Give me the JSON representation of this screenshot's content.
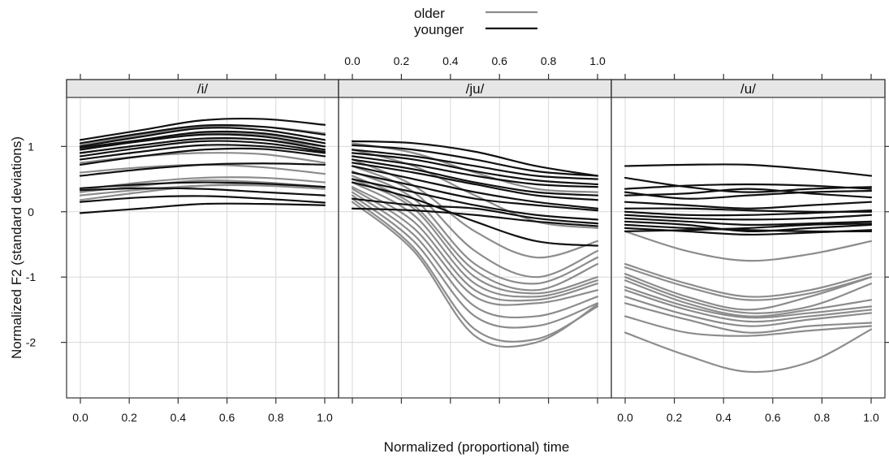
{
  "chart_data": {
    "type": "line",
    "layout": "three panels in a row with shared y-axis",
    "xlabel": "Normalized (proportional) time",
    "ylabel": "Normalized F2 (standard deviations)",
    "xlim": [
      0,
      1
    ],
    "ylim": [
      -2.85,
      1.75
    ],
    "x_ticks": [
      0.0,
      0.2,
      0.4,
      0.6,
      0.8,
      1.0
    ],
    "x_tick_labels": [
      "0.0",
      "0.2",
      "0.4",
      "0.6",
      "0.8",
      "1.0"
    ],
    "y_ticks": [
      -2,
      -1,
      0,
      1
    ],
    "y_tick_labels": [
      "-2",
      "-1",
      "0",
      "1"
    ],
    "grid": true,
    "legend": {
      "placement": "top-center",
      "entries": [
        {
          "label": "older",
          "color": "#8c8c8c"
        },
        {
          "label": "younger",
          "color": "#111111"
        }
      ]
    },
    "x_sample_points": [
      0,
      0.25,
      0.5,
      0.75,
      1
    ],
    "panels": [
      {
        "label": "/i/",
        "series": [
          {
            "group": "younger",
            "y": [
              1.1,
              1.25,
              1.4,
              1.42,
              1.33
            ]
          },
          {
            "group": "younger",
            "y": [
              1.05,
              1.2,
              1.32,
              1.3,
              1.18
            ]
          },
          {
            "group": "younger",
            "y": [
              1.0,
              1.15,
              1.28,
              1.25,
              1.1
            ]
          },
          {
            "group": "younger",
            "y": [
              0.98,
              1.1,
              1.22,
              1.2,
              1.05
            ]
          },
          {
            "group": "younger",
            "y": [
              0.95,
              1.08,
              1.18,
              1.15,
              1.0
            ]
          },
          {
            "group": "younger",
            "y": [
              0.9,
              1.02,
              1.12,
              1.1,
              0.95
            ]
          },
          {
            "group": "younger",
            "y": [
              0.85,
              0.98,
              1.08,
              1.05,
              0.92
            ]
          },
          {
            "group": "younger",
            "y": [
              0.8,
              0.92,
              1.02,
              1.0,
              0.9
            ]
          },
          {
            "group": "younger",
            "y": [
              0.72,
              0.85,
              0.95,
              0.96,
              0.85
            ]
          },
          {
            "group": "younger",
            "y": [
              0.55,
              0.65,
              0.72,
              0.74,
              0.72
            ]
          },
          {
            "group": "younger",
            "y": [
              0.36,
              0.42,
              0.45,
              0.43,
              0.38
            ]
          },
          {
            "group": "younger",
            "y": [
              0.33,
              0.36,
              0.35,
              0.3,
              0.25
            ]
          },
          {
            "group": "younger",
            "y": [
              0.15,
              0.22,
              0.24,
              0.2,
              0.14
            ]
          },
          {
            "group": "younger",
            "y": [
              -0.02,
              0.05,
              0.12,
              0.12,
              0.1
            ]
          },
          {
            "group": "older",
            "y": [
              1.02,
              1.18,
              1.3,
              1.3,
              1.2
            ]
          },
          {
            "group": "older",
            "y": [
              0.95,
              1.1,
              1.2,
              1.18,
              1.05
            ]
          },
          {
            "group": "older",
            "y": [
              0.9,
              1.02,
              1.12,
              1.1,
              1.0
            ]
          },
          {
            "group": "older",
            "y": [
              0.75,
              0.85,
              0.9,
              0.88,
              0.75
            ]
          },
          {
            "group": "older",
            "y": [
              0.6,
              0.68,
              0.72,
              0.68,
              0.58
            ]
          },
          {
            "group": "older",
            "y": [
              0.34,
              0.45,
              0.52,
              0.52,
              0.45
            ]
          },
          {
            "group": "older",
            "y": [
              0.3,
              0.4,
              0.48,
              0.45,
              0.38
            ]
          },
          {
            "group": "older",
            "y": [
              0.25,
              0.34,
              0.4,
              0.4,
              0.35
            ]
          },
          {
            "group": "older",
            "y": [
              0.18,
              0.3,
              0.4,
              0.42,
              0.38
            ]
          }
        ]
      },
      {
        "label": "/ju/",
        "series": [
          {
            "group": "younger",
            "y": [
              1.08,
              1.05,
              0.92,
              0.7,
              0.55
            ]
          },
          {
            "group": "younger",
            "y": [
              1.02,
              0.95,
              0.8,
              0.62,
              0.55
            ]
          },
          {
            "group": "younger",
            "y": [
              0.95,
              0.85,
              0.7,
              0.55,
              0.5
            ]
          },
          {
            "group": "younger",
            "y": [
              0.9,
              0.8,
              0.62,
              0.48,
              0.42
            ]
          },
          {
            "group": "younger",
            "y": [
              0.85,
              0.72,
              0.55,
              0.42,
              0.38
            ]
          },
          {
            "group": "younger",
            "y": [
              0.8,
              0.65,
              0.45,
              0.3,
              0.25
            ]
          },
          {
            "group": "younger",
            "y": [
              0.75,
              0.6,
              0.42,
              0.25,
              0.18
            ]
          },
          {
            "group": "younger",
            "y": [
              0.7,
              0.5,
              0.3,
              0.15,
              0.05
            ]
          },
          {
            "group": "younger",
            "y": [
              0.6,
              0.4,
              0.2,
              0.1,
              0.02
            ]
          },
          {
            "group": "younger",
            "y": [
              0.5,
              0.3,
              0.1,
              -0.05,
              -0.12
            ]
          },
          {
            "group": "younger",
            "y": [
              0.45,
              0.2,
              -0.15,
              -0.45,
              -0.52
            ]
          },
          {
            "group": "younger",
            "y": [
              0.2,
              0.1,
              0.05,
              -0.1,
              -0.18
            ]
          },
          {
            "group": "younger",
            "y": [
              0.05,
              0.02,
              -0.05,
              -0.15,
              -0.22
            ]
          },
          {
            "group": "older",
            "y": [
              1.05,
              0.9,
              0.6,
              0.35,
              0.3
            ]
          },
          {
            "group": "older",
            "y": [
              0.95,
              0.7,
              0.25,
              -0.15,
              -0.25
            ]
          },
          {
            "group": "older",
            "y": [
              0.8,
              0.4,
              -0.3,
              -0.7,
              -0.45
            ]
          },
          {
            "group": "older",
            "y": [
              0.7,
              0.3,
              -0.6,
              -1.0,
              -0.6
            ]
          },
          {
            "group": "older",
            "y": [
              0.62,
              0.2,
              -0.8,
              -1.1,
              -0.7
            ]
          },
          {
            "group": "older",
            "y": [
              0.55,
              0.1,
              -0.9,
              -1.2,
              -0.8
            ]
          },
          {
            "group": "older",
            "y": [
              0.5,
              0.05,
              -1.0,
              -1.25,
              -1.0
            ]
          },
          {
            "group": "older",
            "y": [
              0.45,
              -0.05,
              -1.1,
              -1.3,
              -1.05
            ]
          },
          {
            "group": "older",
            "y": [
              0.38,
              -0.15,
              -1.2,
              -1.35,
              -1.1
            ]
          },
          {
            "group": "older",
            "y": [
              0.35,
              -0.25,
              -1.3,
              -1.4,
              -1.2
            ]
          },
          {
            "group": "older",
            "y": [
              0.3,
              -0.35,
              -1.45,
              -1.6,
              -1.3
            ]
          },
          {
            "group": "older",
            "y": [
              0.25,
              -0.45,
              -1.6,
              -1.75,
              -1.4
            ]
          },
          {
            "group": "older",
            "y": [
              0.2,
              -0.55,
              -1.8,
              -1.95,
              -1.45
            ]
          },
          {
            "group": "older",
            "y": [
              0.15,
              -0.6,
              -1.9,
              -2.0,
              -1.42
            ]
          }
        ]
      },
      {
        "label": "/u/",
        "series": [
          {
            "group": "younger",
            "y": [
              0.7,
              0.72,
              0.72,
              0.65,
              0.55
            ]
          },
          {
            "group": "younger",
            "y": [
              0.52,
              0.38,
              0.3,
              0.35,
              0.38
            ]
          },
          {
            "group": "younger",
            "y": [
              0.35,
              0.4,
              0.42,
              0.4,
              0.35
            ]
          },
          {
            "group": "younger",
            "y": [
              0.3,
              0.2,
              0.25,
              0.3,
              0.32
            ]
          },
          {
            "group": "younger",
            "y": [
              0.25,
              0.28,
              0.35,
              0.28,
              0.22
            ]
          },
          {
            "group": "younger",
            "y": [
              0.15,
              0.1,
              0.05,
              0.1,
              0.15
            ]
          },
          {
            "group": "younger",
            "y": [
              0.05,
              0.05,
              0.02,
              0.0,
              0.0
            ]
          },
          {
            "group": "younger",
            "y": [
              0.0,
              -0.05,
              -0.05,
              -0.02,
              0.02
            ]
          },
          {
            "group": "younger",
            "y": [
              -0.05,
              -0.1,
              -0.12,
              -0.1,
              -0.05
            ]
          },
          {
            "group": "younger",
            "y": [
              -0.1,
              -0.15,
              -0.2,
              -0.18,
              -0.15
            ]
          },
          {
            "group": "younger",
            "y": [
              -0.15,
              -0.2,
              -0.3,
              -0.25,
              -0.2
            ]
          },
          {
            "group": "younger",
            "y": [
              -0.2,
              -0.25,
              -0.28,
              -0.3,
              -0.3
            ]
          },
          {
            "group": "younger",
            "y": [
              -0.25,
              -0.3,
              -0.35,
              -0.32,
              -0.28
            ]
          },
          {
            "group": "younger",
            "y": [
              -0.3,
              -0.28,
              -0.25,
              -0.2,
              -0.18
            ]
          },
          {
            "group": "older",
            "y": [
              -0.3,
              -0.6,
              -0.75,
              -0.65,
              -0.45
            ]
          },
          {
            "group": "older",
            "y": [
              -0.8,
              -1.1,
              -1.3,
              -1.2,
              -0.95
            ]
          },
          {
            "group": "older",
            "y": [
              -0.85,
              -1.15,
              -1.35,
              -1.25,
              -1.0
            ]
          },
          {
            "group": "older",
            "y": [
              -0.95,
              -1.3,
              -1.5,
              -1.3,
              -1.0
            ]
          },
          {
            "group": "older",
            "y": [
              -1.0,
              -1.35,
              -1.55,
              -1.45,
              -1.1
            ]
          },
          {
            "group": "older",
            "y": [
              -1.05,
              -1.4,
              -1.6,
              -1.5,
              -1.35
            ]
          },
          {
            "group": "older",
            "y": [
              -1.15,
              -1.45,
              -1.62,
              -1.55,
              -1.45
            ]
          },
          {
            "group": "older",
            "y": [
              -1.2,
              -1.5,
              -1.68,
              -1.6,
              -1.5
            ]
          },
          {
            "group": "older",
            "y": [
              -1.3,
              -1.58,
              -1.75,
              -1.65,
              -1.55
            ]
          },
          {
            "group": "older",
            "y": [
              -1.4,
              -1.65,
              -1.85,
              -1.75,
              -1.7
            ]
          },
          {
            "group": "older",
            "y": [
              -1.6,
              -1.85,
              -1.9,
              -1.82,
              -1.75
            ]
          },
          {
            "group": "older",
            "y": [
              -1.85,
              -2.2,
              -2.45,
              -2.3,
              -1.8
            ]
          }
        ]
      }
    ]
  }
}
